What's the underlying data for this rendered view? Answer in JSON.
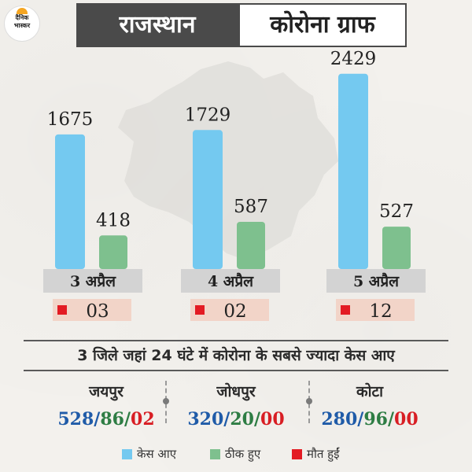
{
  "header": {
    "logo_text_1": "दैनिक",
    "logo_text_2": "भास्कर",
    "title_left": "राजस्थान",
    "title_right": "कोरोना ग्राफ"
  },
  "colors": {
    "cases": "#74c9f0",
    "recovered": "#7ec08e",
    "deaths": "#e31b23",
    "label_bg": "#d3d3d3",
    "death_bg": "#f2d4c8",
    "blue_text": "#1f5ba8",
    "green_text": "#2e7d44",
    "red_text": "#d81e24"
  },
  "chart_data": {
    "type": "bar",
    "categories": [
      "3 अप्रैल",
      "4 अप्रैल",
      "5 अप्रैल"
    ],
    "series": [
      {
        "name": "केस आए",
        "values": [
          1675,
          1729,
          2429
        ]
      },
      {
        "name": "ठीक हुए",
        "values": [
          418,
          587,
          527
        ]
      },
      {
        "name": "मौत हुईं",
        "values": [
          3,
          2,
          12
        ]
      }
    ],
    "value_labels": {
      "cases": [
        "1675",
        "1729",
        "2429"
      ],
      "recovered": [
        "418",
        "587",
        "527"
      ],
      "deaths": [
        "03",
        "02",
        "12"
      ]
    },
    "legend_placement": "bottom"
  },
  "districts_heading": "3 जिले जहां 24 घंटे में कोरोना के सबसे ज्यादा केस आए",
  "districts": [
    {
      "name": "जयपुर",
      "cases": "528",
      "recovered": "86",
      "deaths": "02"
    },
    {
      "name": "जोधपुर",
      "cases": "320",
      "recovered": "20",
      "deaths": "00"
    },
    {
      "name": "कोटा",
      "cases": "280",
      "recovered": "96",
      "deaths": "00"
    }
  ],
  "legend": [
    {
      "label": "केस आए",
      "color": "#74c9f0"
    },
    {
      "label": "ठीक हुए",
      "color": "#7ec08e"
    },
    {
      "label": "मौत हुईं",
      "color": "#e31b23"
    }
  ]
}
